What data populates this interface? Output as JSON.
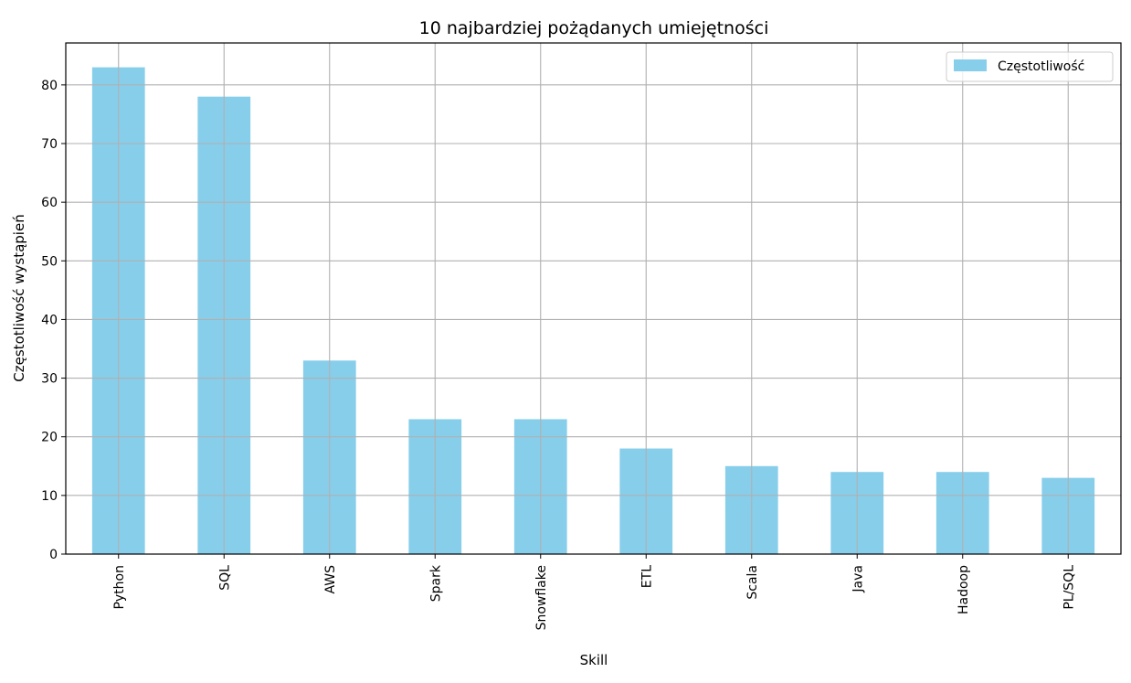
{
  "chart_data": {
    "type": "bar",
    "title": "10 najbardziej pożądanych umiejętności",
    "xlabel": "Skill",
    "ylabel": "Częstotliwość wystąpień",
    "categories": [
      "Python",
      "SQL",
      "AWS",
      "Spark",
      "Snowflake",
      "ETL",
      "Scala",
      "Java",
      "Hadoop",
      "PL/SQL"
    ],
    "series": [
      {
        "name": "Częstotliwość",
        "values": [
          83,
          78,
          33,
          23,
          23,
          18,
          15,
          14,
          14,
          13
        ]
      }
    ],
    "ylim": [
      0,
      87.15
    ],
    "yticks": [
      0,
      10,
      20,
      30,
      40,
      50,
      60,
      70,
      80
    ],
    "grid": true,
    "legend_position": "top-right",
    "colors": {
      "bar": "#87ceeb",
      "grid": "#b0b0b0",
      "axis": "#000000"
    }
  }
}
